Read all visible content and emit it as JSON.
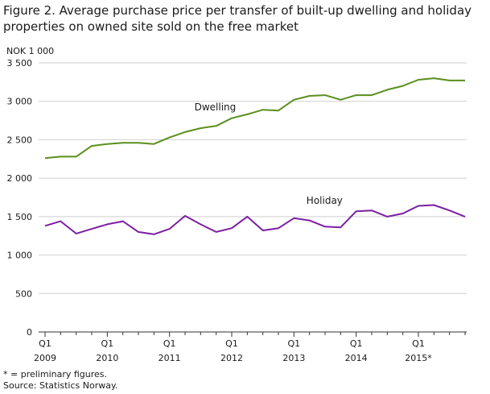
{
  "figure_title": "Figure 2. Average purchase price per transfer of built-up dwelling and holiday properties on owned site sold on the free market",
  "footnotes": {
    "preliminary": "* = preliminary figures.",
    "source": "Source: Statistics Norway."
  },
  "colors": {
    "dwelling": "#5a8f1e",
    "holiday": "#7b1fa2",
    "grid": "#cfcfcf",
    "axis": "#333333"
  },
  "chart_data": {
    "type": "line",
    "title": "Figure 2. Average purchase price per transfer of built-up dwelling and holiday properties on owned site sold on the free market",
    "ylabel": "NOK 1 000",
    "xlabel": "",
    "ylim": [
      0,
      3500
    ],
    "yticks": [
      0,
      500,
      1000,
      1500,
      2000,
      2500,
      3000,
      3500
    ],
    "ytick_labels": [
      "0",
      "500",
      "1 000",
      "1 500",
      "2 000",
      "2 500",
      "3 000",
      "3 500"
    ],
    "grid": true,
    "x": [
      "2009Q1",
      "2009Q2",
      "2009Q3",
      "2009Q4",
      "2010Q1",
      "2010Q2",
      "2010Q3",
      "2010Q4",
      "2011Q1",
      "2011Q2",
      "2011Q3",
      "2011Q4",
      "2012Q1",
      "2012Q2",
      "2012Q3",
      "2012Q4",
      "2013Q1",
      "2013Q2",
      "2013Q3",
      "2013Q4",
      "2014Q1",
      "2014Q2",
      "2014Q3",
      "2014Q4",
      "2015Q1",
      "2015Q2",
      "2015Q3",
      "2015Q4"
    ],
    "xtick_labels": [
      {
        "quarter": "Q1",
        "year": "2009"
      },
      {
        "quarter": "Q1",
        "year": "2010"
      },
      {
        "quarter": "Q1",
        "year": "2011"
      },
      {
        "quarter": "Q1",
        "year": "2012"
      },
      {
        "quarter": "Q1",
        "year": "2013"
      },
      {
        "quarter": "Q1",
        "year": "2014"
      },
      {
        "quarter": "Q1",
        "year": "2015*"
      }
    ],
    "series": [
      {
        "name": "Dwelling",
        "color": "#5a8f1e",
        "values": [
          2260,
          2280,
          2280,
          2420,
          2445,
          2460,
          2460,
          2445,
          2530,
          2600,
          2650,
          2680,
          2780,
          2830,
          2890,
          2880,
          3020,
          3070,
          3080,
          3020,
          3080,
          3080,
          3150,
          3200,
          3280,
          3300,
          3270,
          3270
        ]
      },
      {
        "name": "Holiday",
        "color": "#7b1fa2",
        "values": [
          1380,
          1440,
          1280,
          1340,
          1400,
          1440,
          1300,
          1270,
          1340,
          1510,
          1400,
          1300,
          1350,
          1500,
          1320,
          1350,
          1480,
          1450,
          1370,
          1360,
          1570,
          1580,
          1500,
          1540,
          1640,
          1650,
          1580,
          1500
        ]
      }
    ]
  }
}
